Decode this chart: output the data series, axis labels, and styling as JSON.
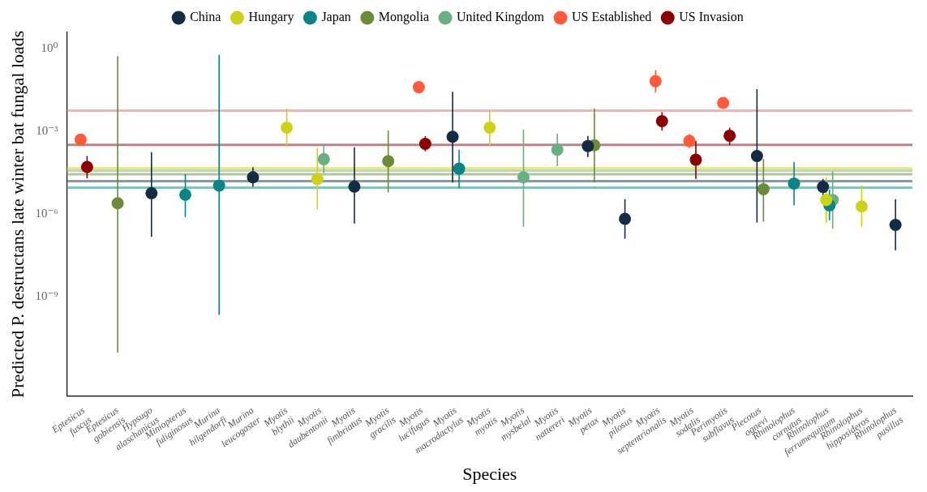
{
  "chart_data": {
    "type": "scatter",
    "xlabel": "Species",
    "ylabel": "Predicted P. destructans late winter bat fungal loads",
    "categories": [
      "Eptesicus fuscus",
      "Eptesicus gobiensis",
      "Hypsugo alaschanicus",
      "Miniopterus fuliginosus",
      "Murina hilgendorfi",
      "Murina leucogaster",
      "Myotis blythii",
      "Myotis daubentonii",
      "Myotis fimbriatus",
      "Myotis gracilis",
      "Myotis lucifugus",
      "Myotis macrodactylus",
      "Myotis myotis",
      "Myotis mysbelal",
      "Myotis nattereri",
      "Myotis petax",
      "Myotis pilosus",
      "Myotis septentrionalis",
      "Myotis sodalis",
      "Perimyotis subflavus",
      "Plecotus ognevi",
      "Rhinolophus cornutus",
      "Rhinolophus ferrumequinum",
      "Rhinolophus hipposideros",
      "Rhinolophus pusillus"
    ],
    "log": "y",
    "grid": false,
    "legend": "top",
    "marker": "circle",
    "ylim": [
      2.5e-13,
      4
    ],
    "yticks": [
      {
        "value": 1,
        "label": "10⁰"
      },
      {
        "value": 0.001,
        "label": "10⁻³"
      },
      {
        "value": 1e-06,
        "label": "10⁻⁶"
      },
      {
        "value": 1e-09,
        "label": "10⁻⁹"
      }
    ],
    "ref_lines": [
      {
        "axis": "y",
        "value": 0.0058,
        "color": "#f9b3a6"
      },
      {
        "axis": "y",
        "value": 0.00033,
        "color": "#c48080"
      },
      {
        "axis": "y",
        "value": 4.7e-05,
        "color": "#e8e890"
      },
      {
        "axis": "y",
        "value": 3.8e-05,
        "color": "#b8d9c0"
      },
      {
        "axis": "y",
        "value": 2.8e-05,
        "color": "#b4c49c"
      },
      {
        "axis": "y",
        "value": 1.6e-05,
        "color": "#8c97a2"
      },
      {
        "axis": "y",
        "value": 9.3e-06,
        "color": "#84c2c2"
      }
    ],
    "series": [
      {
        "name": "China",
        "color": "#132c43",
        "x": [
          "Hypsugo alaschanicus",
          "Murina leucogaster",
          "Myotis fimbriatus",
          "Myotis macrodactylus",
          "Myotis petax",
          "Myotis pilosus",
          "Plecotus ognevi",
          "Rhinolophus ferrumequinum",
          "Rhinolophus pusillus"
        ],
        "values": [
          5.8e-06,
          2.2e-05,
          1e-05,
          0.00065,
          0.0003,
          6.8e-07,
          0.00013,
          9.8e-06,
          4.1e-07
        ],
        "errors": [
          [
            1.5e-07,
            0.00018
          ],
          [
            9.8e-06,
            5e-05
          ],
          [
            4.6e-07,
            0.00027
          ],
          [
            1.4e-05,
            0.028
          ],
          [
            0.00012,
            0.00069
          ],
          [
            1.3e-07,
            3.5e-06
          ],
          [
            5e-07,
            0.035
          ],
          [
            4.9e-06,
            1.9e-05
          ],
          [
            4.9e-08,
            3.5e-06
          ]
        ]
      },
      {
        "name": "Hungary",
        "color": "#cdd11a",
        "x": [
          "Myotis blythii",
          "Myotis daubentonii",
          "Myotis myotis",
          "Rhinolophus ferrumequinum",
          "Rhinolophus hipposideros"
        ],
        "values": [
          0.0014,
          1.9e-05,
          0.0014,
          3.3e-06,
          1.9e-06
        ],
        "errors": [
          [
            0.00028,
            0.0069
          ],
          [
            1.5e-06,
            0.00025
          ],
          [
            0.0003,
            0.0059
          ],
          [
            4.8e-07,
            2.2e-05
          ],
          [
            3.5e-07,
            1.1e-05
          ]
        ]
      },
      {
        "name": "Japan",
        "color": "#0a8585",
        "x": [
          "Miniopterus fuliginosus",
          "Murina hilgendorfi",
          "Myotis macrodactylus",
          "Rhinolophus cornutus",
          "Rhinolophus ferrumequinum"
        ],
        "values": [
          5.1e-06,
          1.1e-05,
          4.5e-05,
          1.3e-05,
          2.1e-06
        ],
        "errors": [
          [
            7.9e-07,
            2.8e-05
          ],
          [
            2.2e-10,
            0.62
          ],
          [
            8.7e-06,
            0.00022
          ],
          [
            2.1e-06,
            7.9e-05
          ],
          [
            6e-07,
            7.8e-06
          ]
        ]
      },
      {
        "name": "Mongolia",
        "color": "#6b8a3a",
        "x": [
          "Eptesicus gobiensis",
          "Myotis gracilis",
          "Myotis petax",
          "Plecotus ognevi"
        ],
        "values": [
          2.5e-06,
          8.5e-05,
          0.00032,
          8.1e-06
        ],
        "errors": [
          [
            9.5e-12,
            0.55
          ],
          [
            6.2e-06,
            0.0011
          ],
          [
            1.4e-05,
            0.0069
          ],
          [
            5.4e-07,
            0.0001
          ]
        ]
      },
      {
        "name": "United Kingdom",
        "color": "#6aaf80",
        "x": [
          "Myotis daubentonii",
          "Myotis mysbelal",
          "Myotis nattereri",
          "Rhinolophus ferrumequinum"
        ],
        "values": [
          0.0001,
          2.2e-05,
          0.00022,
          3.3e-06
        ],
        "errors": [
          [
            3.1e-05,
            0.00034
          ],
          [
            3.5e-07,
            0.0012
          ],
          [
            5.6e-05,
            0.00085
          ],
          [
            3e-07,
            3.5e-05
          ]
        ]
      },
      {
        "name": "US Established",
        "color": "#ff5a3c",
        "x": [
          "Eptesicus fuscus",
          "Myotis lucifugus",
          "Myotis septentrionalis",
          "Myotis sodalis",
          "Perimyotis subflavus"
        ],
        "values": [
          0.00051,
          0.041,
          0.068,
          0.00046,
          0.011
        ],
        "errors": [
          null,
          null,
          [
            0.026,
            0.17
          ],
          [
            0.00025,
            0.00081
          ],
          null
        ]
      },
      {
        "name": "US Invasion",
        "color": "#8b0000",
        "x": [
          "Eptesicus fuscus",
          "Myotis lucifugus",
          "Myotis septentrionalis",
          "Myotis sodalis",
          "Perimyotis subflavus"
        ],
        "values": [
          5.2e-05,
          0.00036,
          0.0024,
          9.5e-05,
          0.00071
        ],
        "errors": [
          [
            2e-05,
            0.00013
          ],
          [
            0.00019,
            0.00068
          ],
          [
            0.0011,
            0.005
          ],
          [
            1.9e-05,
            0.00046
          ],
          [
            0.00033,
            0.0014
          ]
        ]
      }
    ]
  }
}
